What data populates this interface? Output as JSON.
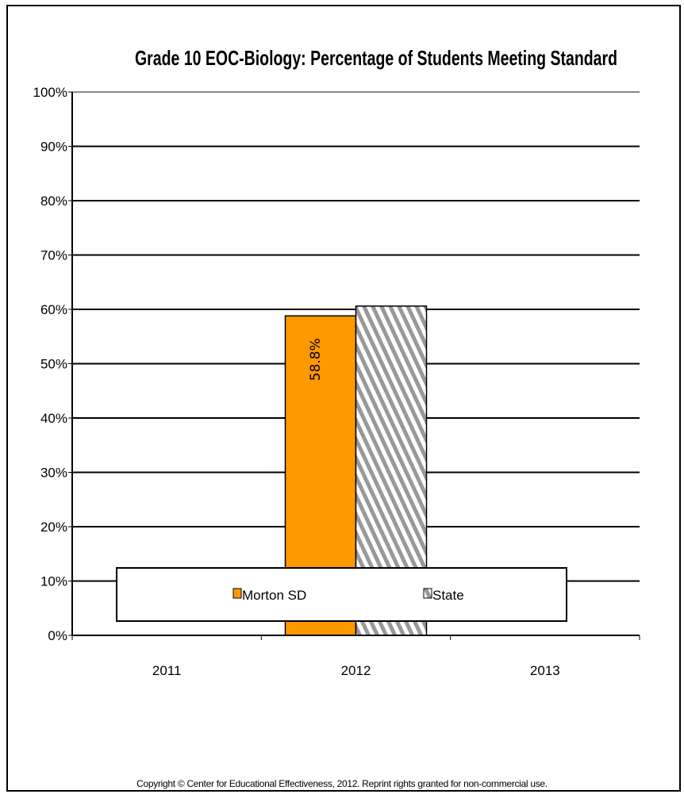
{
  "chart_data": {
    "type": "bar",
    "title": "Grade 10 EOC-Biology: Percentage of Students Meeting Standard",
    "categories": [
      "2011",
      "2012",
      "2013"
    ],
    "series": [
      {
        "name": "Morton SD",
        "values": [
          null,
          58.8,
          null
        ],
        "color": "#FF9900",
        "pattern": "solid"
      },
      {
        "name": "State",
        "values": [
          null,
          60.6,
          null
        ],
        "color": "#999999",
        "pattern": "diagonal-hatch"
      }
    ],
    "data_labels": {
      "Morton SD": [
        "",
        "58.8%",
        ""
      ]
    },
    "y_ticks": [
      "0%",
      "10%",
      "20%",
      "30%",
      "40%",
      "50%",
      "60%",
      "70%",
      "80%",
      "90%",
      "100%"
    ],
    "ylim": [
      0,
      100
    ],
    "grid": true,
    "legend_position": "bottom"
  },
  "footer": {
    "copyright": "Copyright © Center for Educational Effectiveness, 2012.  Reprint rights granted for non-commercial use."
  }
}
